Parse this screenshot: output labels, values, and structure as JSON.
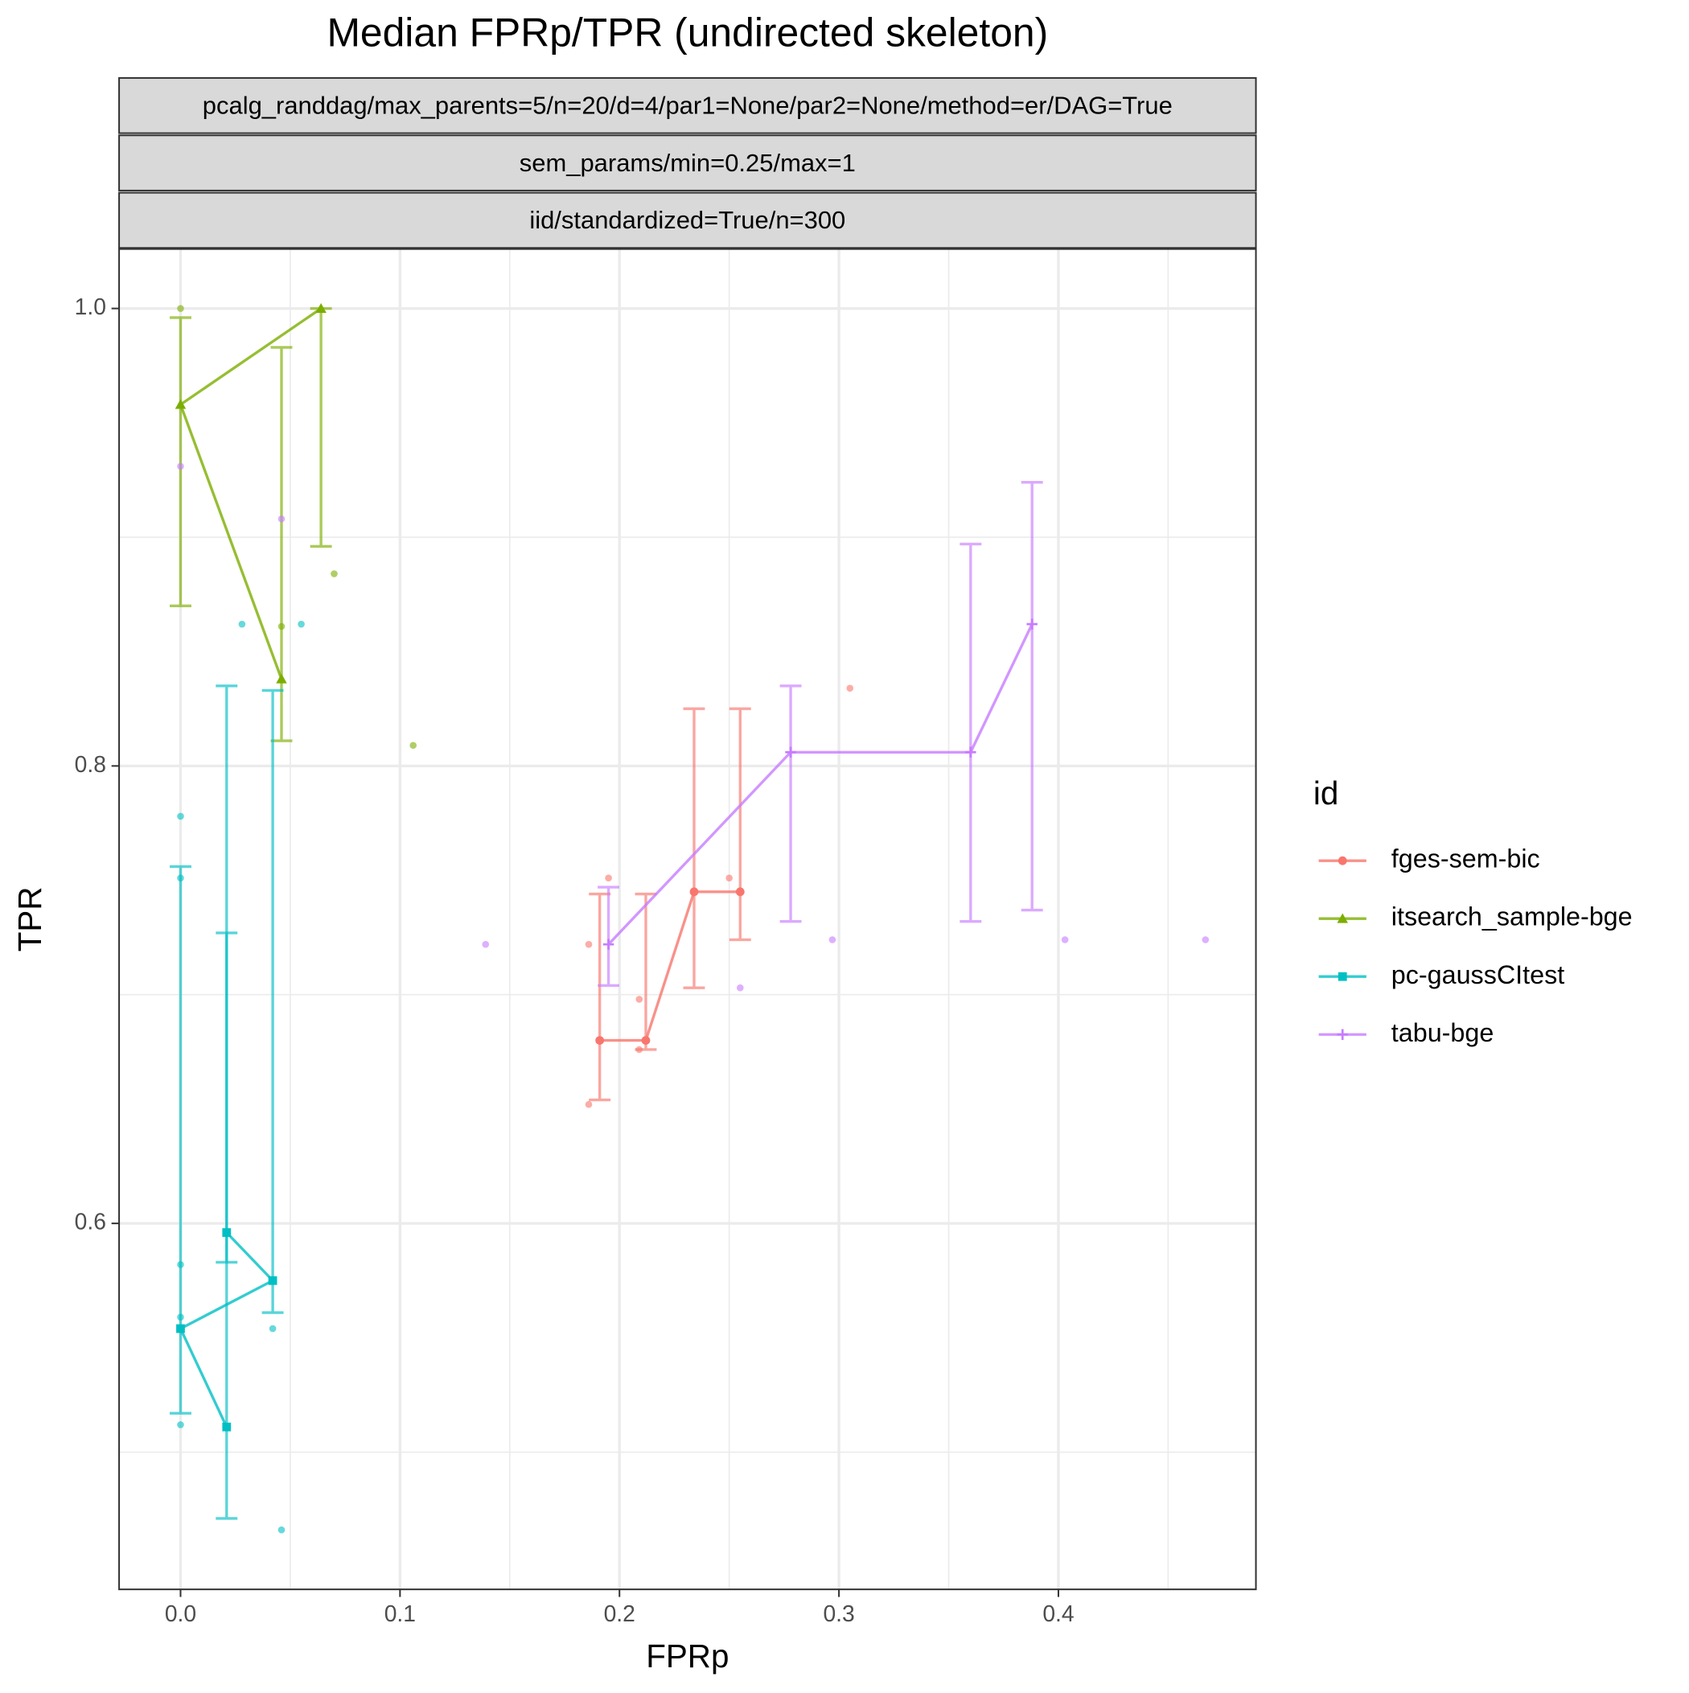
{
  "chart_data": {
    "type": "line-errorbar",
    "title": "Median FPRp/TPR (undirected skeleton)",
    "strips": [
      "pcalg_randdag/max_parents=5/n=20/d=4/par1=None/par2=None/method=er/DAG=True",
      "sem_params/min=0.25/max=1",
      "iid/standardized=True/n=300"
    ],
    "x_label": "FPRp",
    "y_label": "TPR",
    "legend_title": "id",
    "legend": "right",
    "grid": true,
    "xlim": [
      -0.028,
      0.49
    ],
    "ylim": [
      0.44,
      1.026
    ],
    "xticks": [
      {
        "value": 0,
        "label": "0.0"
      },
      0.1,
      0.2,
      0.3,
      0.4
    ],
    "yticks": [
      0.6,
      0.8,
      {
        "value": 1,
        "label": "1.0"
      }
    ],
    "xminor": [
      0.05,
      0.15,
      0.25,
      0.35,
      0.45
    ],
    "yminor": [
      0.5,
      0.7,
      0.9
    ],
    "series": [
      {
        "name": "fges-sem-bic",
        "color": "#F8766D",
        "marker": "circle",
        "x": [
          0.191,
          0.212,
          0.234,
          0.255
        ],
        "values": [
          0.68,
          0.68,
          0.745,
          0.745
        ],
        "ymin": [
          0.654,
          0.676,
          0.703,
          0.724
        ],
        "ymax": [
          0.744,
          0.744,
          0.825,
          0.825
        ],
        "points_x": [
          0.186,
          0.186,
          0.195,
          0.209,
          0.209,
          0.25,
          0.305
        ],
        "points_y": [
          0.722,
          0.652,
          0.751,
          0.698,
          0.676,
          0.751,
          0.834
        ]
      },
      {
        "name": "itsearch_sample-bge",
        "color": "#7CAE00",
        "marker": "triangle",
        "x": [
          0.046,
          0,
          0.064
        ],
        "values": [
          0.838,
          0.958,
          1.0
        ],
        "ymin": [
          0.811,
          0.87,
          0.896
        ],
        "ymax": [
          0.983,
          0.996,
          1.0
        ],
        "points_x": [
          0,
          0.046,
          0.07,
          0.106
        ],
        "points_y": [
          1.0,
          0.861,
          0.884,
          0.809
        ]
      },
      {
        "name": "pc-gaussCItest",
        "color": "#00BFC4",
        "marker": "square",
        "x": [
          0.021,
          0,
          0.042,
          0.021
        ],
        "values": [
          0.511,
          0.554,
          0.575,
          0.596
        ],
        "ymin": [
          0.471,
          0.517,
          0.561,
          0.583
        ],
        "ymax": [
          0.727,
          0.756,
          0.833,
          0.835
        ],
        "points_x": [
          0,
          0,
          0,
          0,
          0,
          0.028,
          0.055,
          0.042,
          0.046
        ],
        "points_y": [
          0.778,
          0.751,
          0.582,
          0.559,
          0.512,
          0.862,
          0.862,
          0.554,
          0.466
        ]
      },
      {
        "name": "tabu-bge",
        "color": "#C77CFF",
        "marker": "cross",
        "x": [
          0.195,
          0.278,
          0.36,
          0.388
        ],
        "values": [
          0.722,
          0.806,
          0.806,
          0.862
        ],
        "ymin": [
          0.704,
          0.732,
          0.732,
          0.737
        ],
        "ymax": [
          0.747,
          0.835,
          0.897,
          0.924
        ],
        "points_x": [
          0,
          0.046,
          0.139,
          0.255,
          0.297,
          0.403,
          0.467
        ],
        "points_y": [
          0.931,
          0.908,
          0.722,
          0.703,
          0.724,
          0.724,
          0.724
        ]
      }
    ]
  }
}
